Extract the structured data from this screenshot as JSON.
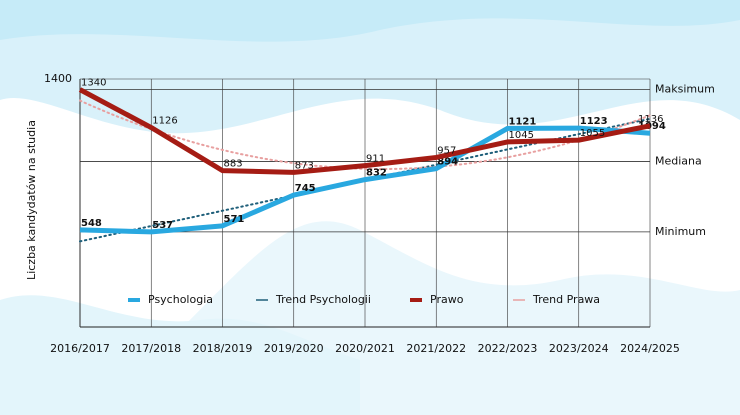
{
  "chart_data": {
    "type": "line",
    "y_label": "Liczba kandydatów na studia",
    "categories": [
      "2016/2017",
      "2017/2018",
      "2018/2019",
      "2019/2020",
      "2020/2021",
      "2021/2022",
      "2022/2023",
      "2023/2024",
      "2024/2025"
    ],
    "series": [
      {
        "name": "Psychologia",
        "color": "#29a8e0",
        "bold_labels": true,
        "values": [
          548,
          537,
          571,
          745,
          832,
          894,
          1121,
          1123,
          1094
        ],
        "trend": {
          "name": "Trend Psychologii",
          "color": "#1f5f7a",
          "degree": 1
        }
      },
      {
        "name": "Prawo",
        "color": "#a51c14",
        "bold_labels": false,
        "values": [
          1340,
          1126,
          883,
          873,
          911,
          957,
          1045,
          1055,
          1136
        ],
        "trend": {
          "name": "Trend Prawa",
          "color": "#e8a0a0",
          "degree": 2
        }
      }
    ],
    "ylim": [
      0,
      1400
    ],
    "yticks": [
      1400
    ],
    "reference_lines": [
      {
        "label": "Maksimum",
        "value": 1340
      },
      {
        "label": "Mediana",
        "value": 934
      },
      {
        "label": "Minimum",
        "value": 537
      }
    ],
    "legend": "bottom"
  }
}
